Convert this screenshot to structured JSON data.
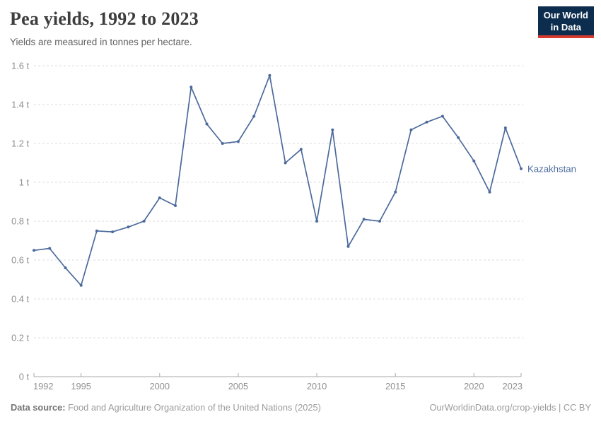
{
  "header": {
    "title": "Pea yields, 1992 to 2023",
    "subtitle": "Yields are measured in tonnes per hectare."
  },
  "logo": {
    "line1": "Our World",
    "line2": "in Data",
    "bg_color": "#0d2d4e",
    "accent_color": "#d63a2f"
  },
  "footer": {
    "source_label": "Data source:",
    "source_text": "Food and Agriculture Organization of the United Nations (2025)",
    "attribution": "OurWorldinData.org/crop-yields | CC BY"
  },
  "chart_data": {
    "type": "line",
    "title": "Pea yields, 1992 to 2023",
    "subtitle": "Yields are measured in tonnes per hectare.",
    "unit": "tonnes per hectare",
    "unit_suffix": " t",
    "xlim": [
      1992,
      2023
    ],
    "ylim": [
      0,
      1.6
    ],
    "xticks": [
      1992,
      1995,
      2000,
      2005,
      2010,
      2015,
      2020,
      2023
    ],
    "yticks": [
      0,
      0.2,
      0.4,
      0.6,
      0.8,
      1,
      1.2,
      1.4,
      1.6
    ],
    "grid": true,
    "legend_position": "end-of-line-label",
    "series": [
      {
        "name": "Kazakhstan",
        "color": "#4C6A9C",
        "x": [
          1992,
          1993,
          1994,
          1995,
          1996,
          1997,
          1998,
          1999,
          2000,
          2001,
          2002,
          2003,
          2004,
          2005,
          2006,
          2007,
          2008,
          2009,
          2010,
          2011,
          2012,
          2013,
          2014,
          2015,
          2016,
          2017,
          2018,
          2019,
          2020,
          2021,
          2022,
          2023
        ],
        "values": [
          0.65,
          0.66,
          0.56,
          0.47,
          0.75,
          0.745,
          0.77,
          0.8,
          0.92,
          0.88,
          1.49,
          1.3,
          1.2,
          1.21,
          1.34,
          1.55,
          1.1,
          1.17,
          0.8,
          1.27,
          0.67,
          0.81,
          0.8,
          0.95,
          1.27,
          1.31,
          1.34,
          1.23,
          1.11,
          0.95,
          1.28,
          1.07
        ]
      }
    ],
    "colors": {
      "gridline": "#dcdcdc",
      "axis": "#a8a8a8",
      "tick_label": "#8f8f8f"
    }
  }
}
